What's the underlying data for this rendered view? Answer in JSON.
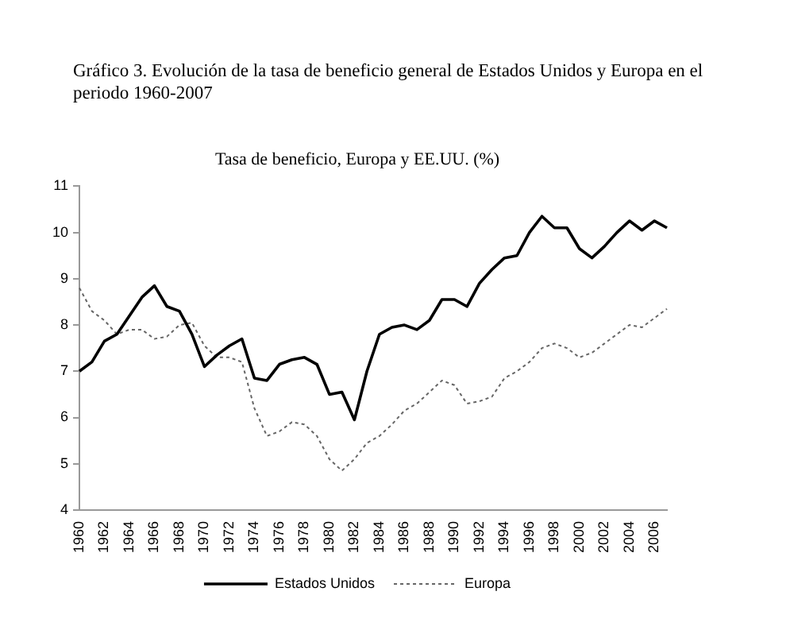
{
  "chart_data": {
    "type": "line",
    "title": "Gráfico 3. Evolución de la tasa de beneficio general de Estados Unidos y Europa en el periodo 1960-2007",
    "subtitle": "Tasa de beneficio, Europa y EE.UU. (%)",
    "categories": [
      "1960",
      null,
      "1962",
      null,
      "1964",
      null,
      "1966",
      null,
      "1968",
      null,
      "1970",
      null,
      "1972",
      null,
      "1974",
      null,
      "1976",
      null,
      "1978",
      null,
      "1980",
      null,
      "1982",
      null,
      "1984",
      null,
      "1986",
      null,
      "1988",
      null,
      "1990",
      null,
      "1992",
      null,
      "1994",
      null,
      "1996",
      null,
      "1998",
      null,
      "2000",
      null,
      "2002",
      null,
      "2004",
      null,
      "2006",
      null
    ],
    "series": [
      {
        "name": "Estados Unidos",
        "color": "#000000",
        "line_style": "solid",
        "values": [
          7.0,
          7.2,
          7.65,
          7.8,
          8.2,
          8.6,
          8.85,
          8.4,
          8.3,
          7.8,
          7.1,
          7.35,
          7.55,
          7.7,
          6.85,
          6.8,
          7.15,
          7.25,
          7.3,
          7.15,
          6.5,
          6.55,
          5.95,
          7.0,
          7.8,
          7.95,
          8.0,
          7.9,
          8.1,
          8.55,
          8.55,
          8.4,
          8.9,
          9.2,
          9.45,
          9.5,
          10.0,
          10.35,
          10.1,
          10.1,
          9.65,
          9.45,
          9.7,
          10.0,
          10.25,
          10.05,
          10.25,
          10.1
        ]
      },
      {
        "name": "Europa",
        "color": "#666666",
        "line_style": "dotted",
        "values": [
          8.8,
          8.3,
          8.1,
          7.8,
          7.9,
          7.9,
          7.7,
          7.75,
          8.0,
          8.05,
          7.55,
          7.3,
          7.3,
          7.2,
          6.2,
          5.6,
          5.7,
          5.9,
          5.85,
          5.6,
          5.1,
          4.85,
          5.1,
          5.45,
          5.6,
          5.85,
          6.15,
          6.3,
          6.55,
          6.8,
          6.7,
          6.3,
          6.35,
          6.45,
          6.85,
          7.0,
          7.2,
          7.5,
          7.6,
          7.5,
          7.3,
          7.4,
          7.6,
          7.8,
          8.0,
          7.95,
          8.15,
          8.35
        ]
      }
    ],
    "ylim": [
      4,
      11
    ],
    "yticks": [
      4,
      5,
      6,
      7,
      8,
      9,
      10,
      11
    ],
    "grid": false,
    "legend": "bottom",
    "marker": "none"
  }
}
